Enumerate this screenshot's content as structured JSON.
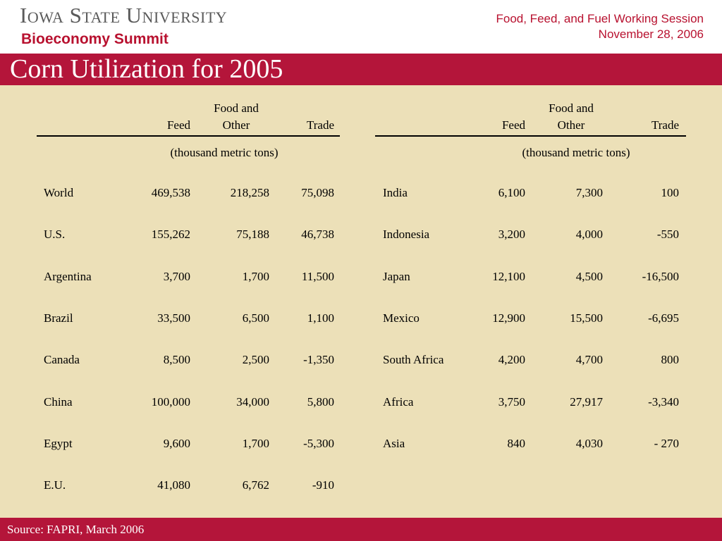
{
  "header": {
    "university": "Iowa State University",
    "summit": "Bioeconomy Summit",
    "session_line1": "Food, Feed, and Fuel Working Session",
    "session_line2": "November 28, 2006"
  },
  "title": "Corn Utilization for 2005",
  "table": {
    "col_feed": "Feed",
    "col_food_line1": "Food and",
    "col_food_line2": "Other",
    "col_trade": "Trade",
    "units": "(thousand metric tons)",
    "left_rows": [
      {
        "name": "World",
        "feed": "469,538",
        "food": "218,258",
        "trade": "75,098"
      },
      {
        "name": "U.S.",
        "feed": "155,262",
        "food": "75,188",
        "trade": "46,738"
      },
      {
        "name": "Argentina",
        "feed": "3,700",
        "food": "1,700",
        "trade": "11,500"
      },
      {
        "name": "Brazil",
        "feed": "33,500",
        "food": "6,500",
        "trade": "1,100"
      },
      {
        "name": "Canada",
        "feed": "8,500",
        "food": "2,500",
        "trade": "-1,350"
      },
      {
        "name": "China",
        "feed": "100,000",
        "food": "34,000",
        "trade": "5,800"
      },
      {
        "name": "Egypt",
        "feed": "9,600",
        "food": "1,700",
        "trade": "-5,300"
      },
      {
        "name": "E.U.",
        "feed": "41,080",
        "food": "6,762",
        "trade": "-910"
      }
    ],
    "right_rows": [
      {
        "name": "India",
        "feed": "6,100",
        "food": "7,300",
        "trade": "100"
      },
      {
        "name": "Indonesia",
        "feed": "3,200",
        "food": "4,000",
        "trade": "-550"
      },
      {
        "name": "Japan",
        "feed": "12,100",
        "food": "4,500",
        "trade": "-16,500"
      },
      {
        "name": "Mexico",
        "feed": "12,900",
        "food": "15,500",
        "trade": "-6,695"
      },
      {
        "name": "South Africa",
        "feed": "4,200",
        "food": "4,700",
        "trade": "800"
      },
      {
        "name": "Africa",
        "feed": "3,750",
        "food": "27,917",
        "trade": "-3,340"
      },
      {
        "name": "Asia",
        "feed": "840",
        "food": "4,030",
        "trade": "- 270"
      }
    ]
  },
  "footer": {
    "source": "Source: FAPRI, March 2006"
  },
  "colors": {
    "brand_red": "#b4153a",
    "background_tan": "#ece0b8",
    "header_gray": "#5a5a5a"
  }
}
